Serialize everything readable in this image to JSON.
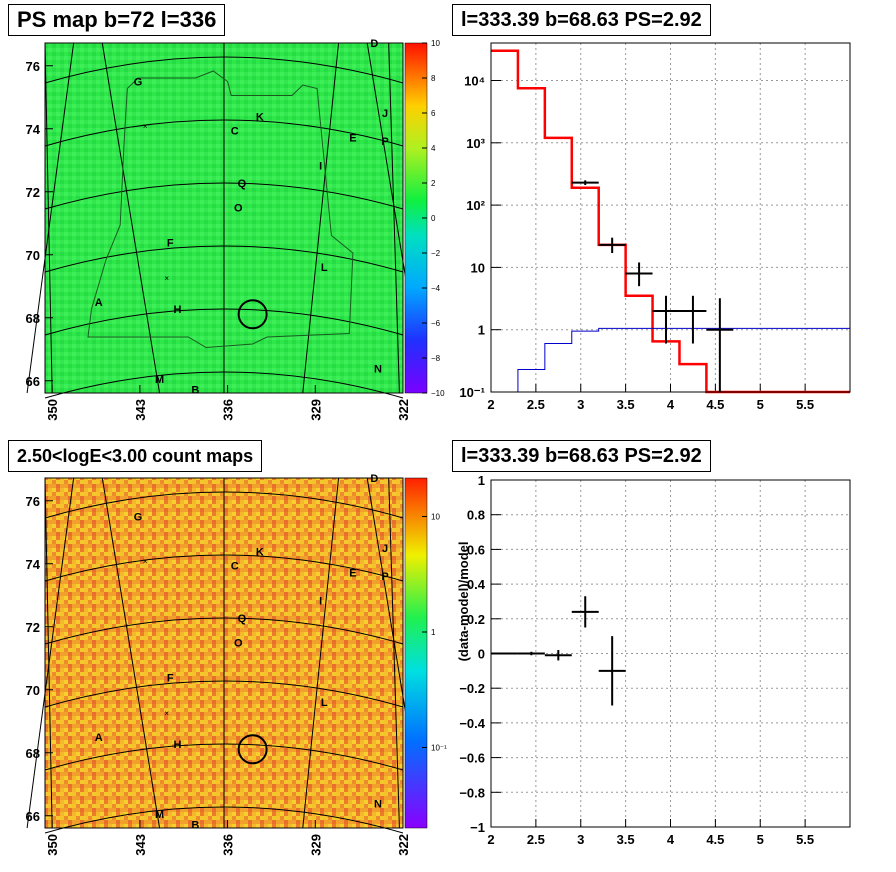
{
  "panels": {
    "top_left_title": "PS map b=72 l=336",
    "top_right_title": "l=333.39 b=68.63 PS=2.92",
    "bottom_left_title": "2.50<logE<3.00 count maps",
    "bottom_right_title": "l=333.39 b=68.63 PS=2.92"
  },
  "region_labels": [
    "D",
    "G",
    "K",
    "J",
    "C",
    "E",
    "P",
    "I",
    "Q",
    "O",
    "F",
    "L",
    "A",
    "H",
    "M",
    "N",
    "B"
  ],
  "chart_data": [
    {
      "type": "heatmap",
      "title": "PS map b=72 l=336",
      "x_ticks": [
        "350",
        "343",
        "336",
        "329",
        "322"
      ],
      "y_ticks": [
        "76",
        "74",
        "72",
        "70",
        "68",
        "66"
      ],
      "colorbar_ticks": [
        "10",
        "8",
        "6",
        "4",
        "2",
        "0",
        "−2",
        "−4",
        "−6",
        "−8",
        "−10"
      ],
      "colorbar_range": [
        -10,
        10
      ],
      "typical_value": 0,
      "colors": {
        "background": "#2ee84a",
        "contour": "#1a5a20",
        "grid": "#000000"
      }
    },
    {
      "type": "line",
      "title": "l=333.39 b=68.63 PS=2.92",
      "xlim": [
        2,
        6
      ],
      "ylim_log": [
        0.1,
        40000
      ],
      "y_log": true,
      "x_ticks": [
        "2",
        "2.5",
        "3",
        "3.5",
        "4",
        "4.5",
        "5",
        "5.5"
      ],
      "y_ticks": [
        "10⁻¹",
        "1",
        "10",
        "10²",
        "10³",
        "10⁴"
      ],
      "model_total_red": {
        "edges": [
          2.0,
          2.3,
          2.6,
          2.9,
          3.2,
          3.5,
          3.8,
          4.1,
          4.4,
          6.0
        ],
        "values": [
          30000,
          7500,
          1200,
          190,
          23,
          3.5,
          0.65,
          0.28,
          0.1
        ]
      },
      "source_blue": {
        "edges": [
          2.3,
          2.6,
          2.9,
          3.2,
          6.0
        ],
        "values": [
          0.23,
          0.6,
          0.95,
          1.05
        ]
      },
      "data_points": [
        {
          "x": 3.05,
          "xerr": 0.15,
          "y": 230,
          "ylo": 210,
          "yhi": 250
        },
        {
          "x": 3.35,
          "xerr": 0.15,
          "y": 23,
          "ylo": 17,
          "yhi": 30
        },
        {
          "x": 3.65,
          "xerr": 0.15,
          "y": 8,
          "ylo": 5,
          "yhi": 12
        },
        {
          "x": 3.95,
          "xerr": 0.15,
          "y": 2,
          "ylo": 0.6,
          "yhi": 3.5
        },
        {
          "x": 4.25,
          "xerr": 0.15,
          "y": 2,
          "ylo": 0.6,
          "yhi": 3.5
        },
        {
          "x": 4.55,
          "xerr": 0.15,
          "y": 1,
          "ylo": 0.1,
          "yhi": 3.2
        }
      ],
      "colors": {
        "model": "#ff0000",
        "source": "#0000cc",
        "data": "#000000"
      }
    },
    {
      "type": "heatmap",
      "title": "2.50<logE<3.00 count maps",
      "x_ticks": [
        "350",
        "343",
        "336",
        "329",
        "322"
      ],
      "y_ticks": [
        "76",
        "74",
        "72",
        "70",
        "68",
        "66"
      ],
      "colorbar_ticks": [
        "10",
        "1",
        "10⁻¹"
      ],
      "colorbar_scale": "log",
      "colors": {
        "hot": "#f08a2a",
        "warm": "#f5c22a",
        "grid": "#000000"
      }
    },
    {
      "type": "scatter",
      "title": "l=333.39 b=68.63 PS=2.92",
      "ylabel": "(data-model)/model",
      "xlim": [
        2,
        6
      ],
      "ylim": [
        -1,
        1
      ],
      "x_ticks": [
        "2",
        "2.5",
        "3",
        "3.5",
        "4",
        "4.5",
        "5",
        "5.5"
      ],
      "y_ticks": [
        "1",
        "0.8",
        "0.6",
        "0.4",
        "0.2",
        "0",
        "−0.2",
        "−0.4",
        "−0.6",
        "−0.8",
        "−1"
      ],
      "points": [
        {
          "x": 2.15,
          "xerr": 0.15,
          "y": 0.0,
          "yerr": 0.005
        },
        {
          "x": 2.45,
          "xerr": 0.15,
          "y": 0.0,
          "yerr": 0.01
        },
        {
          "x": 2.75,
          "xerr": 0.15,
          "y": -0.01,
          "yerr": 0.03
        },
        {
          "x": 3.05,
          "xerr": 0.15,
          "y": 0.24,
          "yerr": 0.09
        },
        {
          "x": 3.35,
          "xerr": 0.15,
          "y": -0.1,
          "yerr": 0.2
        }
      ]
    }
  ]
}
